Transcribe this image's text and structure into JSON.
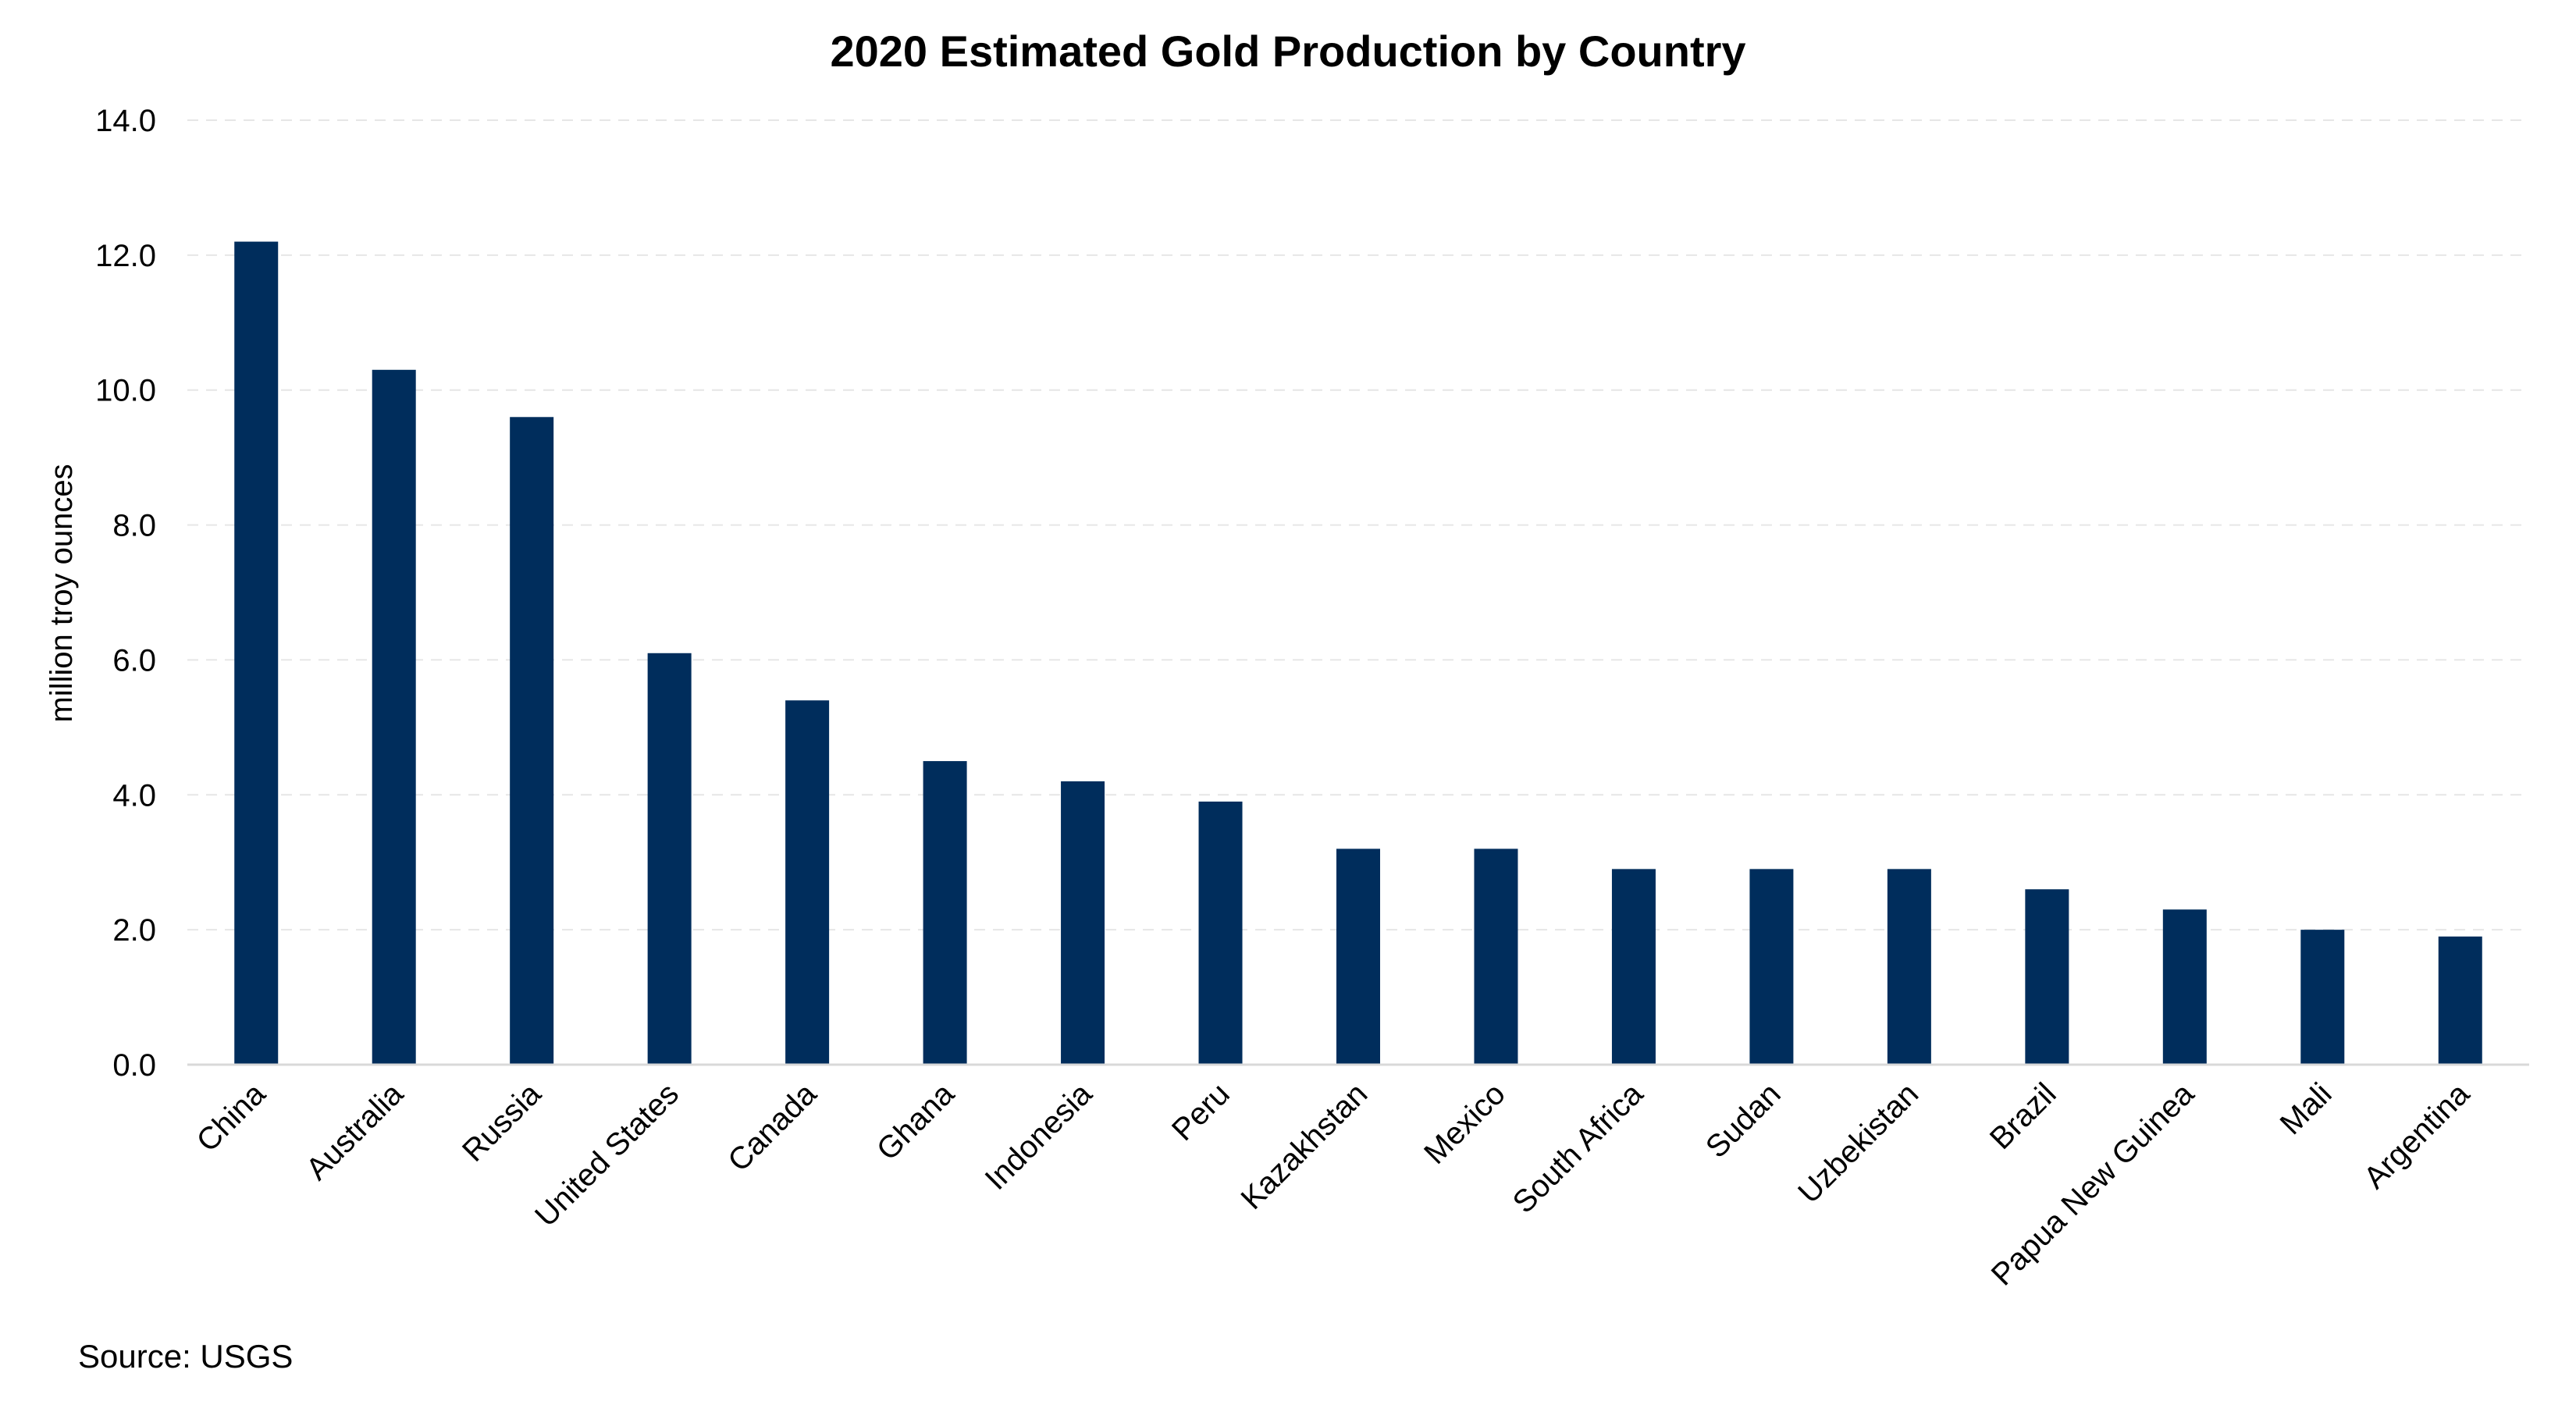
{
  "chart_data": {
    "type": "bar",
    "title": "2020 Estimated Gold Production by Country",
    "xlabel": "",
    "ylabel": "million troy ounces",
    "categories": [
      "China",
      "Australia",
      "Russia",
      "United States",
      "Canada",
      "Ghana",
      "Indonesia",
      "Peru",
      "Kazakhstan",
      "Mexico",
      "South Africa",
      "Sudan",
      "Uzbekistan",
      "Brazil",
      "Papua New Guinea",
      "Mali",
      "Argentina"
    ],
    "values": [
      12.2,
      10.3,
      9.6,
      6.1,
      5.4,
      4.5,
      4.2,
      3.9,
      3.2,
      3.2,
      2.9,
      2.9,
      2.9,
      2.6,
      2.3,
      2.0,
      1.9
    ],
    "ylim": [
      0,
      14
    ],
    "yticks": [
      "0.0",
      "2.0",
      "4.0",
      "6.0",
      "8.0",
      "10.0",
      "12.0",
      "14.0"
    ],
    "grid": true,
    "legend": "none",
    "bar_color": "#002d5c",
    "source": "Source: USGS"
  }
}
